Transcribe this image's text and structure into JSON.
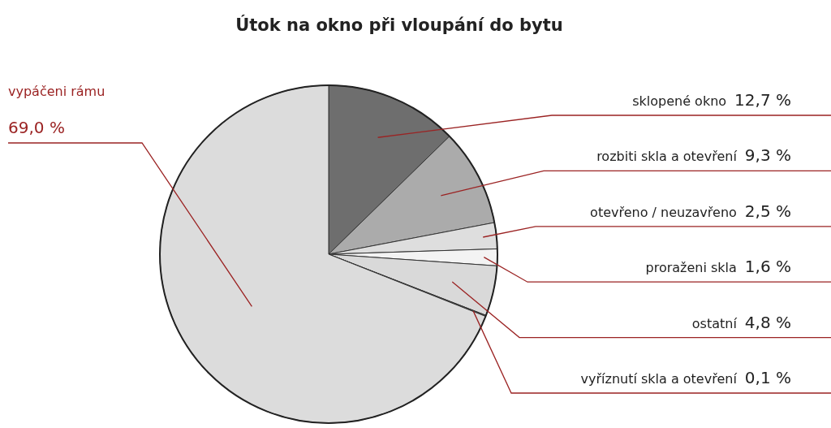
{
  "chart_data": {
    "type": "pie",
    "title": "Útok na okno při vloupání do bytu",
    "categories": [
      "sklopené okno",
      "rozbiti skla a otevření",
      "otevřeno / neuzavřeno",
      "proraženi skla",
      "ostatní",
      "vyříznutí skla a otevření",
      "vypáčeni rámu"
    ],
    "values": [
      12.7,
      9.3,
      2.5,
      1.6,
      4.8,
      0.1,
      69.0
    ],
    "value_labels": [
      "12,7 %",
      "9,3 %",
      "2,5 %",
      "1,6 %",
      "4,8 %",
      "0,1 %",
      "69,0 %"
    ],
    "colors": [
      "#6e6e6e",
      "#ababab",
      "#dedede",
      "#f3f3f3",
      "#d9d9d9",
      "#555555",
      "#dcdcdc"
    ]
  }
}
